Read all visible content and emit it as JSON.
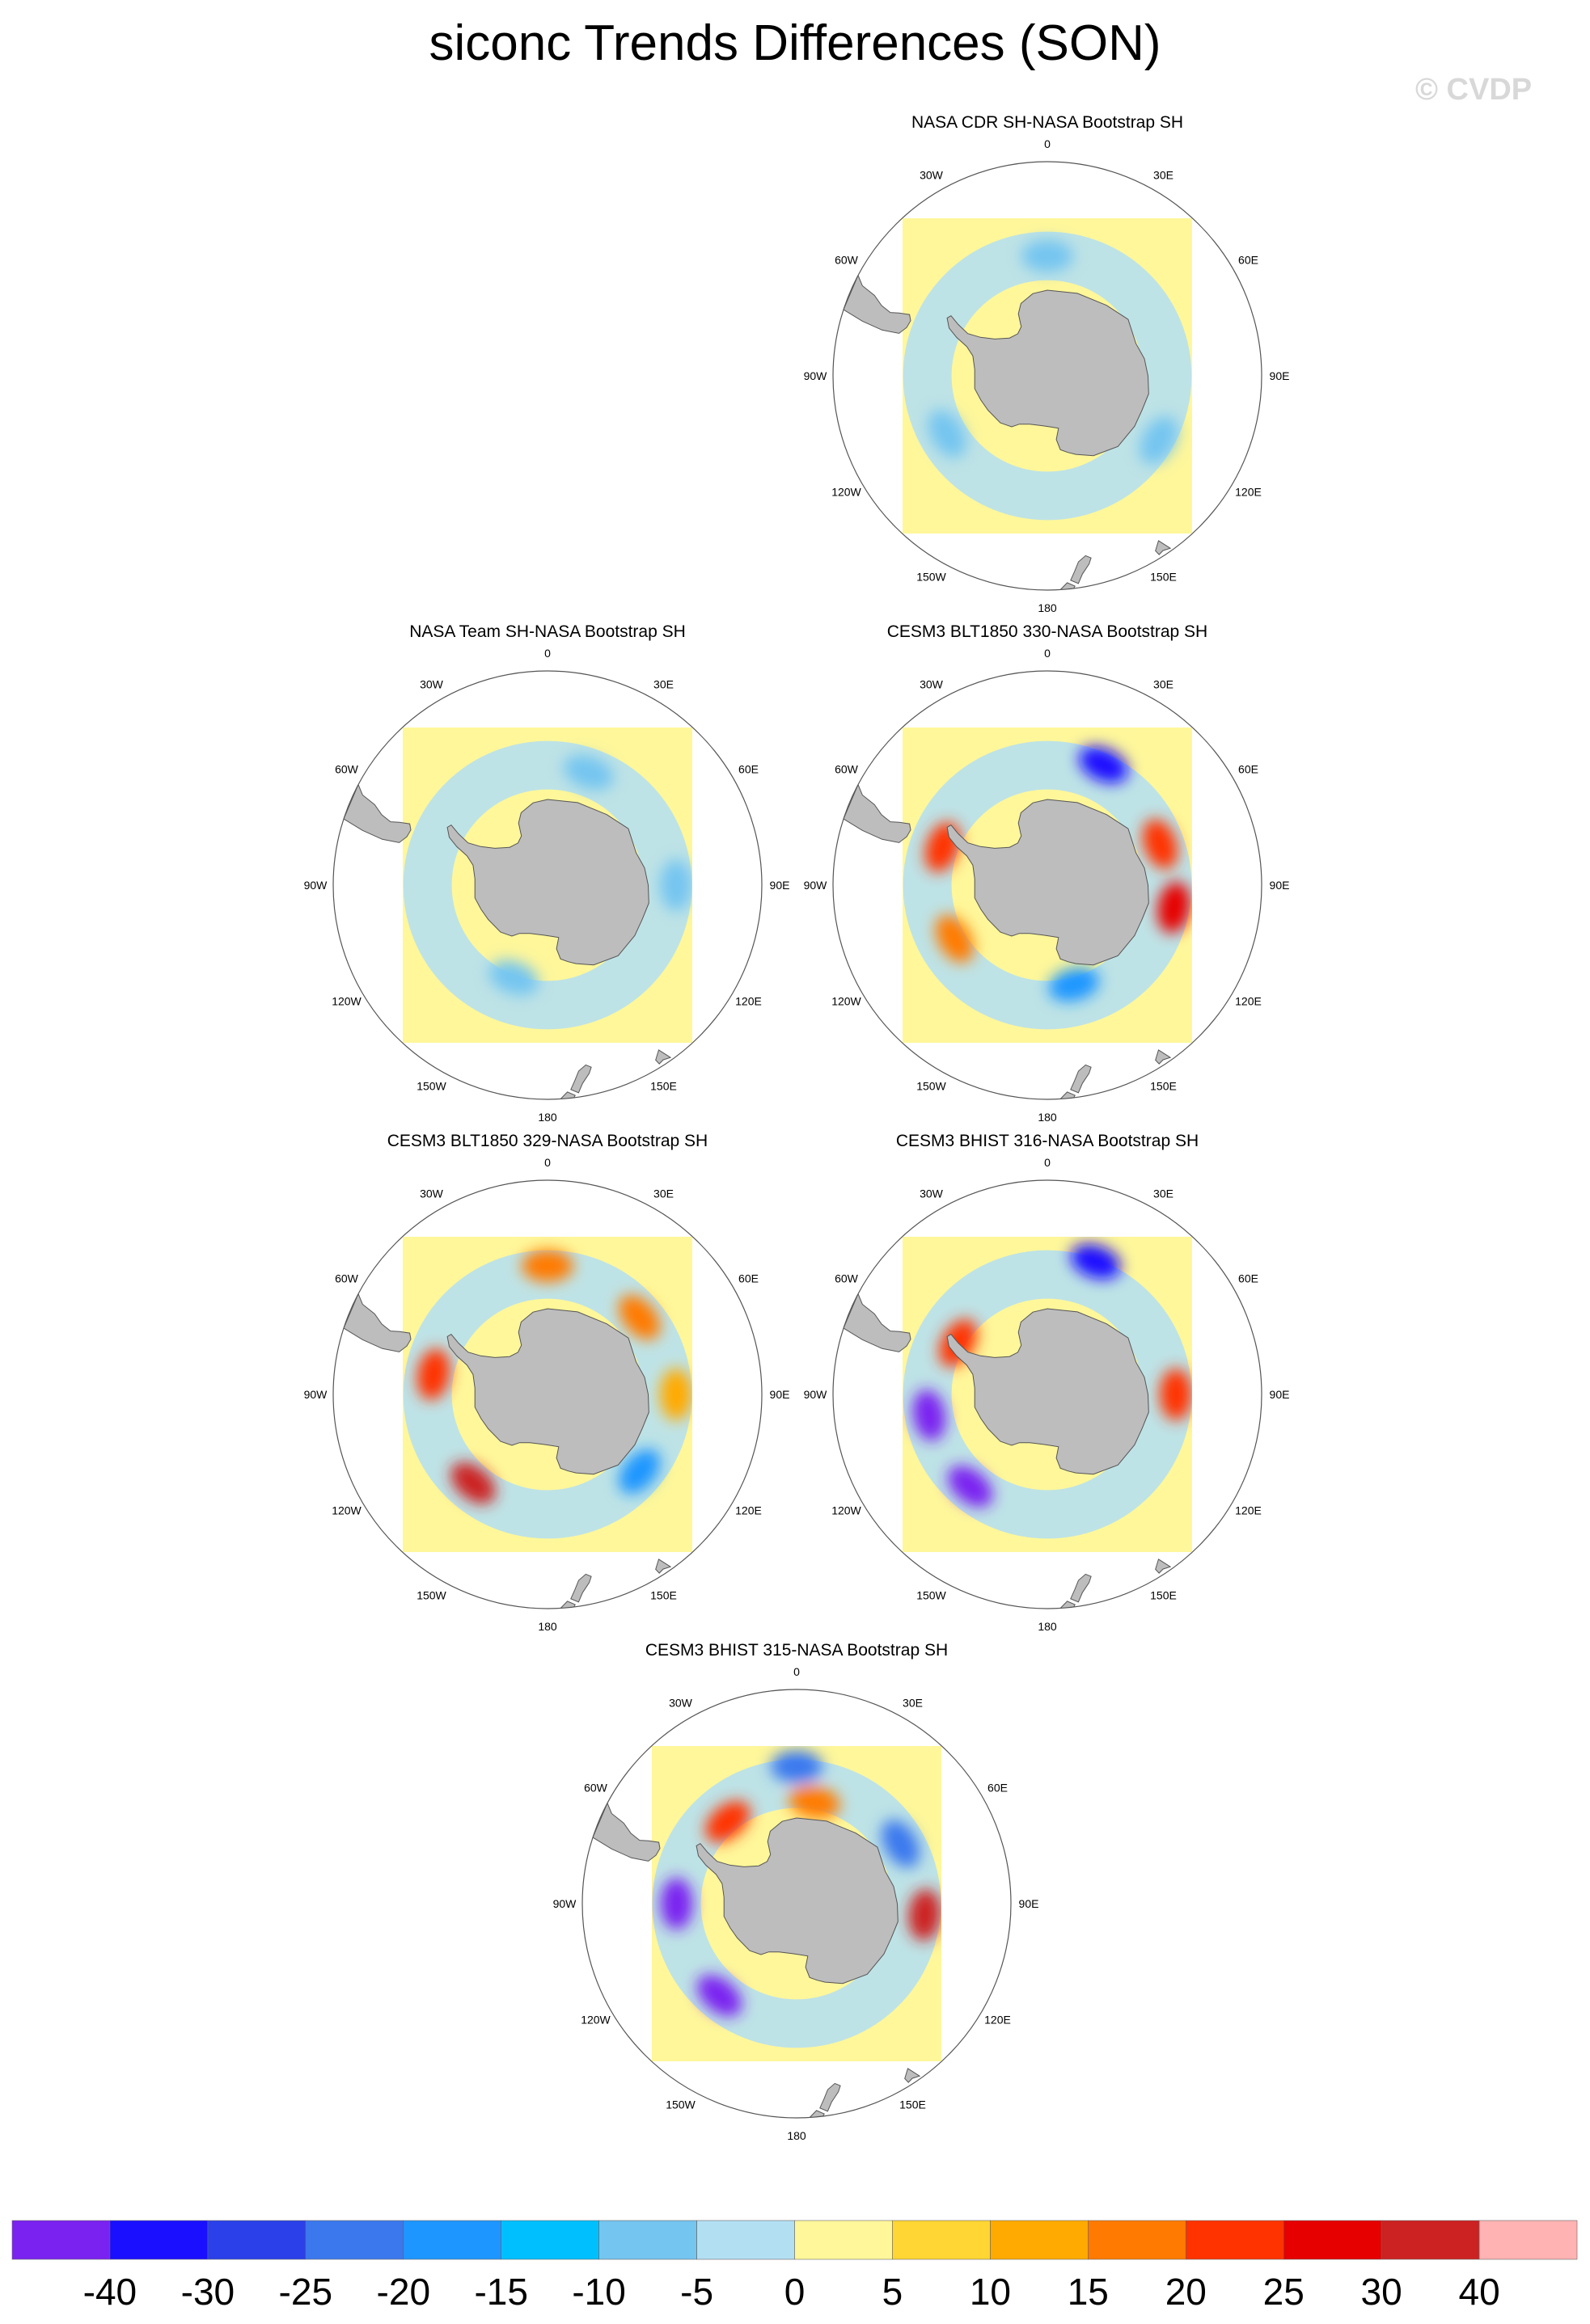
{
  "figure": {
    "title": "siconc Trends Differences (SON)",
    "watermark": "© CVDP"
  },
  "longitude_labels": [
    "0",
    "30E",
    "60E",
    "90E",
    "120E",
    "150E",
    "180",
    "150W",
    "120W",
    "90W",
    "60W",
    "30W"
  ],
  "panels": [
    {
      "title": "NASA CDR SH-NASA Bootstrap SH",
      "anomalies": [
        {
          "lon": 0,
          "lat": -62,
          "value": -5
        },
        {
          "lon": 120,
          "lat": -60,
          "value": -5
        },
        {
          "lon": 240,
          "lat": -63,
          "value": -5
        }
      ]
    },
    {
      "title": "NASA Team SH-NASA Bootstrap SH",
      "anomalies": [
        {
          "lon": 200,
          "lat": -67,
          "value": -5
        },
        {
          "lon": 20,
          "lat": -62,
          "value": -5
        },
        {
          "lon": 90,
          "lat": -60,
          "value": -5
        }
      ]
    },
    {
      "title": "CESM3 BLT1850 330-NASA Bootstrap SH",
      "anomalies": [
        {
          "lon": 25,
          "lat": -59,
          "value": -30
        },
        {
          "lon": 70,
          "lat": -62,
          "value": 25
        },
        {
          "lon": 100,
          "lat": -60,
          "value": 30
        },
        {
          "lon": 290,
          "lat": -64,
          "value": 25
        },
        {
          "lon": 240,
          "lat": -65,
          "value": 20
        },
        {
          "lon": 165,
          "lat": -66,
          "value": -15
        }
      ]
    },
    {
      "title": "CESM3 BLT1850 329-NASA Bootstrap SH",
      "anomalies": [
        {
          "lon": 0,
          "lat": -60,
          "value": 20
        },
        {
          "lon": 50,
          "lat": -62,
          "value": 20
        },
        {
          "lon": 90,
          "lat": -60,
          "value": 15
        },
        {
          "lon": 130,
          "lat": -62,
          "value": -15
        },
        {
          "lon": 220,
          "lat": -63,
          "value": 40
        },
        {
          "lon": 280,
          "lat": -63,
          "value": 25
        }
      ]
    },
    {
      "title": "CESM3 BHIST 316-NASA Bootstrap SH",
      "anomalies": [
        {
          "lon": 20,
          "lat": -57,
          "value": -30
        },
        {
          "lon": 90,
          "lat": -60,
          "value": 25
        },
        {
          "lon": 220,
          "lat": -62,
          "value": -40
        },
        {
          "lon": 260,
          "lat": -62,
          "value": -40
        },
        {
          "lon": 300,
          "lat": -66,
          "value": 25
        }
      ]
    },
    {
      "title": "CESM3 BHIST 315-NASA Bootstrap SH",
      "anomalies": [
        {
          "lon": 0,
          "lat": -58,
          "value": -20
        },
        {
          "lon": 10,
          "lat": -66,
          "value": 20
        },
        {
          "lon": 95,
          "lat": -60,
          "value": 40
        },
        {
          "lon": 60,
          "lat": -62,
          "value": -20
        },
        {
          "lon": 220,
          "lat": -62,
          "value": -40
        },
        {
          "lon": 270,
          "lat": -62,
          "value": -40
        },
        {
          "lon": 320,
          "lat": -65,
          "value": 25
        }
      ]
    }
  ],
  "colorbar": {
    "labels": [
      "-40",
      "-30",
      "-25",
      "-20",
      "-15",
      "-10",
      "-5",
      "0",
      "5",
      "10",
      "15",
      "20",
      "25",
      "30",
      "40"
    ],
    "colors": [
      "#7a22f0",
      "#1a10ff",
      "#2b40e8",
      "#3b78ee",
      "#1e96ff",
      "#00bfff",
      "#74c5f0",
      "#b3dff3",
      "#fff79a",
      "#ffd633",
      "#ffaa00",
      "#ff7a00",
      "#ff3300",
      "#e60000",
      "#cc2222",
      "#ffb3b3"
    ]
  }
}
